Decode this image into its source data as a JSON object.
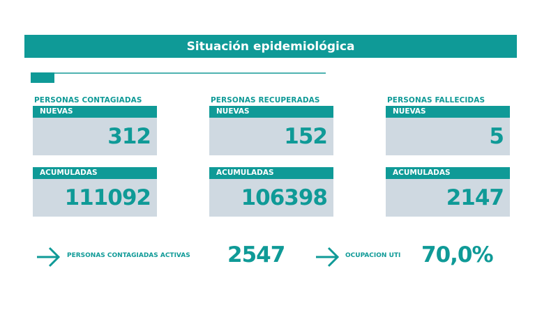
{
  "header": {
    "title": "Situación epidemiológica"
  },
  "columns": [
    {
      "category": "PERSONAS CONTAGIADAS",
      "new_label": "NUEVAS",
      "new_value": "312",
      "acc_label": "ACUMULADAS",
      "acc_value": "111092"
    },
    {
      "category": "PERSONAS RECUPERADAS",
      "new_label": "NUEVAS",
      "new_value": "152",
      "acc_label": "ACUMULADAS",
      "acc_value": "106398"
    },
    {
      "category": "PERSONAS FALLECIDAS",
      "new_label": "NUEVAS",
      "new_value": "5",
      "acc_label": "ACUMULADAS",
      "acc_value": "2147"
    }
  ],
  "summary": [
    {
      "label": "PERSONAS CONTAGIADAS ACTIVAS",
      "value": "2547",
      "icon": "arrow-right-icon"
    },
    {
      "label": "OCUPACION UTI",
      "value": "70,0%",
      "icon": "arrow-right-icon"
    }
  ],
  "colors": {
    "accent": "#0f9a97",
    "box": "#cfd9e1"
  }
}
